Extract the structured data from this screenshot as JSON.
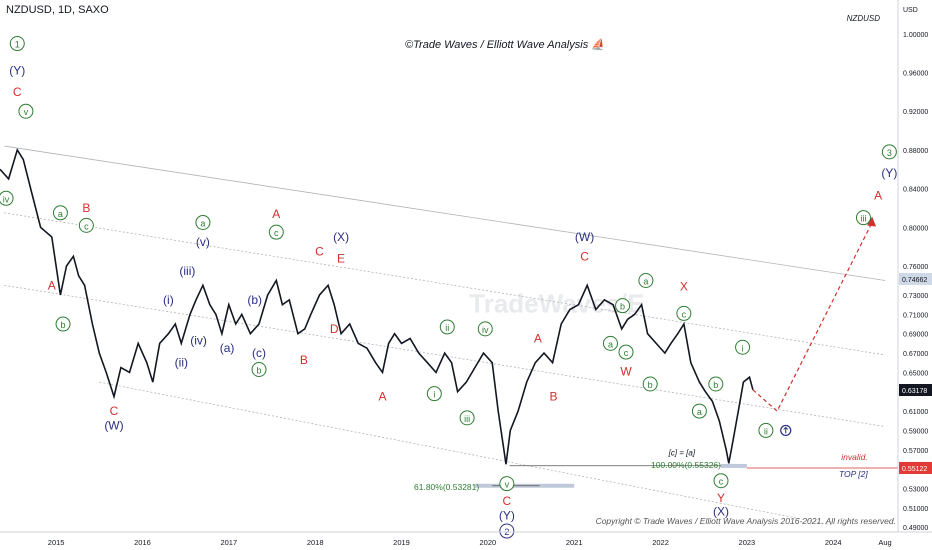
{
  "header": {
    "symbol": "NZDUSD, 1D, SAXO",
    "corner_symbol": "NZDUSD",
    "currency": "USD",
    "center_title": "©Trade Waves / Elliott Wave Analysis ⛵",
    "watermark": "TradeWaves/E",
    "copyright": "Copyright © Trade Waves / Elliott Wave Analysis 2016-2021. All rights reserved."
  },
  "colors": {
    "green": "#2e7d32",
    "red": "#d32f2f",
    "navy": "#2a2f7e",
    "candle": "#131722",
    "price_tag": "#131722",
    "invalid_tag": "#e53935",
    "blue_tag": "#cfd8e6"
  },
  "chart_data": {
    "type": "line",
    "title": "NZDUSD, 1D, SAXO",
    "ylim": [
      0.485,
      1.035
    ],
    "xlim": [
      2014.35,
      2024.75
    ],
    "y_ticks": [
      "1.00000",
      "0.96000",
      "0.92000",
      "0.88000",
      "0.84000",
      "0.80000",
      "0.76000",
      "0.74662",
      "0.73000",
      "0.71000",
      "0.69000",
      "0.67000",
      "0.65000",
      "0.63178",
      "0.61000",
      "0.59000",
      "0.57000",
      "0.55122",
      "0.53000",
      "0.51000",
      "0.49000"
    ],
    "x_ticks": [
      {
        "label": "2015",
        "t": 2015.0
      },
      {
        "label": "2016",
        "t": 2016.0
      },
      {
        "label": "2017",
        "t": 2017.0
      },
      {
        "label": "2018",
        "t": 2018.0
      },
      {
        "label": "2019",
        "t": 2019.0
      },
      {
        "label": "2020",
        "t": 2020.0
      },
      {
        "label": "2021",
        "t": 2021.0
      },
      {
        "label": "2022",
        "t": 2022.0
      },
      {
        "label": "2023",
        "t": 2023.0
      },
      {
        "label": "2024",
        "t": 2024.0
      },
      {
        "label": "Aug",
        "t": 2024.6
      }
    ],
    "price_series": [
      [
        2014.35,
        0.86
      ],
      [
        2014.45,
        0.85
      ],
      [
        2014.55,
        0.88
      ],
      [
        2014.62,
        0.87
      ],
      [
        2014.72,
        0.835
      ],
      [
        2014.82,
        0.8
      ],
      [
        2014.95,
        0.79
      ],
      [
        2015.05,
        0.73
      ],
      [
        2015.12,
        0.76
      ],
      [
        2015.2,
        0.77
      ],
      [
        2015.26,
        0.75
      ],
      [
        2015.33,
        0.74
      ],
      [
        2015.42,
        0.7
      ],
      [
        2015.5,
        0.67
      ],
      [
        2015.58,
        0.65
      ],
      [
        2015.67,
        0.625
      ],
      [
        2015.75,
        0.655
      ],
      [
        2015.85,
        0.65
      ],
      [
        2015.95,
        0.68
      ],
      [
        2016.05,
        0.66
      ],
      [
        2016.12,
        0.64
      ],
      [
        2016.2,
        0.68
      ],
      [
        2016.3,
        0.69
      ],
      [
        2016.38,
        0.7
      ],
      [
        2016.45,
        0.68
      ],
      [
        2016.55,
        0.71
      ],
      [
        2016.62,
        0.725
      ],
      [
        2016.7,
        0.74
      ],
      [
        2016.78,
        0.72
      ],
      [
        2016.85,
        0.71
      ],
      [
        2016.92,
        0.69
      ],
      [
        2017.0,
        0.72
      ],
      [
        2017.08,
        0.7
      ],
      [
        2017.15,
        0.71
      ],
      [
        2017.25,
        0.69
      ],
      [
        2017.35,
        0.7
      ],
      [
        2017.45,
        0.73
      ],
      [
        2017.55,
        0.745
      ],
      [
        2017.62,
        0.72
      ],
      [
        2017.7,
        0.725
      ],
      [
        2017.8,
        0.69
      ],
      [
        2017.88,
        0.695
      ],
      [
        2017.95,
        0.71
      ],
      [
        2018.05,
        0.73
      ],
      [
        2018.15,
        0.74
      ],
      [
        2018.22,
        0.72
      ],
      [
        2018.3,
        0.69
      ],
      [
        2018.4,
        0.7
      ],
      [
        2018.5,
        0.68
      ],
      [
        2018.6,
        0.675
      ],
      [
        2018.7,
        0.66
      ],
      [
        2018.78,
        0.65
      ],
      [
        2018.85,
        0.68
      ],
      [
        2018.92,
        0.69
      ],
      [
        2019.0,
        0.68
      ],
      [
        2019.1,
        0.685
      ],
      [
        2019.2,
        0.67
      ],
      [
        2019.3,
        0.66
      ],
      [
        2019.4,
        0.65
      ],
      [
        2019.5,
        0.67
      ],
      [
        2019.58,
        0.66
      ],
      [
        2019.65,
        0.63
      ],
      [
        2019.75,
        0.64
      ],
      [
        2019.85,
        0.655
      ],
      [
        2019.95,
        0.67
      ],
      [
        2020.05,
        0.66
      ],
      [
        2020.12,
        0.61
      ],
      [
        2020.21,
        0.555
      ],
      [
        2020.26,
        0.59
      ],
      [
        2020.35,
        0.61
      ],
      [
        2020.45,
        0.64
      ],
      [
        2020.55,
        0.66
      ],
      [
        2020.65,
        0.67
      ],
      [
        2020.75,
        0.66
      ],
      [
        2020.85,
        0.7
      ],
      [
        2020.95,
        0.715
      ],
      [
        2021.05,
        0.72
      ],
      [
        2021.15,
        0.74
      ],
      [
        2021.25,
        0.715
      ],
      [
        2021.35,
        0.725
      ],
      [
        2021.45,
        0.72
      ],
      [
        2021.55,
        0.695
      ],
      [
        2021.62,
        0.705
      ],
      [
        2021.7,
        0.71
      ],
      [
        2021.78,
        0.72
      ],
      [
        2021.85,
        0.69
      ],
      [
        2021.95,
        0.68
      ],
      [
        2022.05,
        0.67
      ],
      [
        2022.12,
        0.68
      ],
      [
        2022.2,
        0.69
      ],
      [
        2022.27,
        0.7
      ],
      [
        2022.35,
        0.66
      ],
      [
        2022.45,
        0.64
      ],
      [
        2022.52,
        0.63
      ],
      [
        2022.6,
        0.62
      ],
      [
        2022.68,
        0.6
      ],
      [
        2022.76,
        0.57
      ],
      [
        2022.79,
        0.556
      ],
      [
        2022.84,
        0.58
      ],
      [
        2022.9,
        0.61
      ],
      [
        2022.96,
        0.64
      ],
      [
        2023.03,
        0.645
      ],
      [
        2023.07,
        0.632
      ]
    ],
    "projection": [
      [
        2023.07,
        0.632
      ],
      [
        2023.35,
        0.61
      ],
      [
        2024.45,
        0.805
      ]
    ],
    "invalidation": 0.5512,
    "top2": 0.5455,
    "fib_level": {
      "ratio": "61.80%(0.53281)",
      "value": 0.5328
    },
    "fib_low": {
      "ratio": "100.00%(0.55326)",
      "value": 0.5533,
      "note": "[c] = [a]"
    },
    "labels": [
      {
        "text": "1",
        "t": 2014.55,
        "p": 0.99,
        "style": "circle",
        "color": "green"
      },
      {
        "text": "(Y)",
        "t": 2014.55,
        "p": 0.962,
        "style": "plain",
        "color": "navy"
      },
      {
        "text": "C",
        "t": 2014.55,
        "p": 0.94,
        "style": "plain",
        "color": "red"
      },
      {
        "text": "v",
        "t": 2014.65,
        "p": 0.92,
        "style": "circle",
        "color": "green"
      },
      {
        "text": "iv",
        "t": 2014.42,
        "p": 0.83,
        "style": "circle",
        "color": "green"
      },
      {
        "text": "a",
        "t": 2015.05,
        "p": 0.815,
        "style": "circle",
        "color": "green"
      },
      {
        "text": "B",
        "t": 2015.35,
        "p": 0.82,
        "style": "plain",
        "color": "red"
      },
      {
        "text": "c",
        "t": 2015.35,
        "p": 0.802,
        "style": "circle",
        "color": "green"
      },
      {
        "text": "A",
        "t": 2014.95,
        "p": 0.74,
        "style": "plain",
        "color": "red"
      },
      {
        "text": "b",
        "t": 2015.08,
        "p": 0.7,
        "style": "circle",
        "color": "green"
      },
      {
        "text": "C",
        "t": 2015.67,
        "p": 0.61,
        "style": "plain",
        "color": "red"
      },
      {
        "text": "(W)",
        "t": 2015.67,
        "p": 0.595,
        "style": "plain",
        "color": "navy"
      },
      {
        "text": "(i)",
        "t": 2016.3,
        "p": 0.725,
        "style": "plain",
        "color": "navy"
      },
      {
        "text": "(iii)",
        "t": 2016.52,
        "p": 0.755,
        "style": "plain",
        "color": "navy"
      },
      {
        "text": "(v)",
        "t": 2016.7,
        "p": 0.785,
        "style": "plain",
        "color": "navy"
      },
      {
        "text": "a",
        "t": 2016.7,
        "p": 0.805,
        "style": "circle",
        "color": "green"
      },
      {
        "text": "(ii)",
        "t": 2016.45,
        "p": 0.66,
        "style": "plain",
        "color": "navy"
      },
      {
        "text": "(iv)",
        "t": 2016.65,
        "p": 0.683,
        "style": "plain",
        "color": "navy"
      },
      {
        "text": "(a)",
        "t": 2016.98,
        "p": 0.675,
        "style": "plain",
        "color": "navy"
      },
      {
        "text": "(b)",
        "t": 2017.3,
        "p": 0.725,
        "style": "plain",
        "color": "navy"
      },
      {
        "text": "(c)",
        "t": 2017.35,
        "p": 0.67,
        "style": "plain",
        "color": "navy"
      },
      {
        "text": "b",
        "t": 2017.35,
        "p": 0.653,
        "style": "circle",
        "color": "green"
      },
      {
        "text": "A",
        "t": 2017.55,
        "p": 0.814,
        "style": "plain",
        "color": "red"
      },
      {
        "text": "c",
        "t": 2017.55,
        "p": 0.795,
        "style": "circle",
        "color": "green"
      },
      {
        "text": "B",
        "t": 2017.87,
        "p": 0.663,
        "style": "plain",
        "color": "red"
      },
      {
        "text": "C",
        "t": 2018.05,
        "p": 0.775,
        "style": "plain",
        "color": "red"
      },
      {
        "text": "(X)",
        "t": 2018.3,
        "p": 0.79,
        "style": "plain",
        "color": "navy"
      },
      {
        "text": "E",
        "t": 2018.3,
        "p": 0.768,
        "style": "plain",
        "color": "red"
      },
      {
        "text": "D",
        "t": 2018.22,
        "p": 0.695,
        "style": "plain",
        "color": "red"
      },
      {
        "text": "A",
        "t": 2018.78,
        "p": 0.625,
        "style": "plain",
        "color": "red"
      },
      {
        "text": "ii",
        "t": 2019.53,
        "p": 0.697,
        "style": "circle",
        "color": "green"
      },
      {
        "text": "iv",
        "t": 2019.97,
        "p": 0.695,
        "style": "circle",
        "color": "green"
      },
      {
        "text": "i",
        "t": 2019.38,
        "p": 0.628,
        "style": "circle",
        "color": "green"
      },
      {
        "text": "iii",
        "t": 2019.76,
        "p": 0.603,
        "style": "circle",
        "color": "green"
      },
      {
        "text": "A",
        "t": 2020.58,
        "p": 0.685,
        "style": "plain",
        "color": "red"
      },
      {
        "text": "B",
        "t": 2020.76,
        "p": 0.625,
        "style": "plain",
        "color": "red"
      },
      {
        "text": "v",
        "t": 2020.22,
        "p": 0.535,
        "style": "circle",
        "color": "green"
      },
      {
        "text": "C",
        "t": 2020.22,
        "p": 0.517,
        "style": "plain",
        "color": "red"
      },
      {
        "text": "(Y)",
        "t": 2020.22,
        "p": 0.502,
        "style": "plain",
        "color": "navy"
      },
      {
        "text": "2",
        "t": 2020.22,
        "p": 0.486,
        "style": "circle",
        "color": "navy"
      },
      {
        "text": "(W)",
        "t": 2021.12,
        "p": 0.79,
        "style": "plain",
        "color": "navy"
      },
      {
        "text": "C",
        "t": 2021.12,
        "p": 0.77,
        "style": "plain",
        "color": "red"
      },
      {
        "text": "b",
        "t": 2021.56,
        "p": 0.719,
        "style": "circle",
        "color": "green"
      },
      {
        "text": "a",
        "t": 2021.42,
        "p": 0.68,
        "style": "circle",
        "color": "green"
      },
      {
        "text": "c",
        "t": 2021.6,
        "p": 0.671,
        "style": "circle",
        "color": "green"
      },
      {
        "text": "W",
        "t": 2021.6,
        "p": 0.651,
        "style": "plain",
        "color": "red"
      },
      {
        "text": "a",
        "t": 2021.83,
        "p": 0.745,
        "style": "circle",
        "color": "green"
      },
      {
        "text": "X",
        "t": 2022.27,
        "p": 0.739,
        "style": "plain",
        "color": "red"
      },
      {
        "text": "c",
        "t": 2022.27,
        "p": 0.711,
        "style": "circle",
        "color": "green"
      },
      {
        "text": "b",
        "t": 2021.88,
        "p": 0.638,
        "style": "circle",
        "color": "green"
      },
      {
        "text": "b",
        "t": 2022.64,
        "p": 0.638,
        "style": "circle",
        "color": "green"
      },
      {
        "text": "a",
        "t": 2022.45,
        "p": 0.61,
        "style": "circle",
        "color": "green"
      },
      {
        "text": "i",
        "t": 2022.95,
        "p": 0.676,
        "style": "circle",
        "color": "green"
      },
      {
        "text": "ii",
        "t": 2023.22,
        "p": 0.59,
        "style": "circle",
        "color": "green"
      },
      {
        "text": "c",
        "t": 2022.7,
        "p": 0.538,
        "style": "circle",
        "color": "green"
      },
      {
        "text": "Y",
        "t": 2022.7,
        "p": 0.52,
        "style": "plain",
        "color": "red"
      },
      {
        "text": "(X)",
        "t": 2022.7,
        "p": 0.506,
        "style": "plain",
        "color": "navy"
      },
      {
        "text": "3",
        "t": 2024.65,
        "p": 0.878,
        "style": "circle",
        "color": "green"
      },
      {
        "text": "(Y)",
        "t": 2024.65,
        "p": 0.856,
        "style": "plain",
        "color": "navy"
      },
      {
        "text": "A",
        "t": 2024.52,
        "p": 0.833,
        "style": "plain",
        "color": "red"
      },
      {
        "text": "iii",
        "t": 2024.35,
        "p": 0.81,
        "style": "circle",
        "color": "green"
      }
    ],
    "price_tags": [
      {
        "label": "0.74662",
        "value": 0.7466,
        "kind": "blue"
      },
      {
        "label": "0.63178",
        "value": 0.6318,
        "kind": "dark"
      },
      {
        "label": "0.55122",
        "value": 0.5512,
        "kind": "red"
      }
    ],
    "annotations": [
      {
        "text": "invalid.",
        "t": 2024.4,
        "p": 0.5595,
        "color": "red"
      },
      {
        "text": "TOP [2]",
        "t": 2024.4,
        "p": 0.542,
        "color": "navy"
      }
    ]
  }
}
